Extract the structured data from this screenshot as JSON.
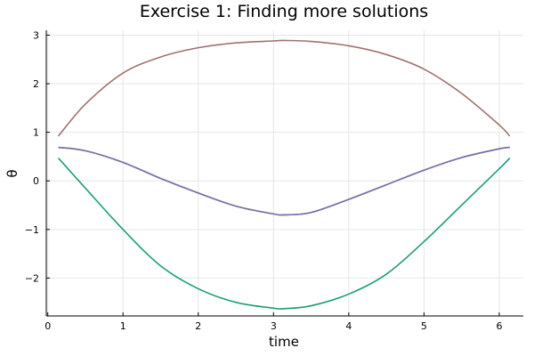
{
  "chart_data": {
    "type": "line",
    "title": "Exercise 1: Finding more solutions",
    "xlabel": "time",
    "ylabel": "θ",
    "xlim": [
      -0.02,
      6.32
    ],
    "ylim": [
      -2.78,
      3.1
    ],
    "xticks": [
      {
        "value": 0,
        "label": "0"
      },
      {
        "value": 1,
        "label": "1"
      },
      {
        "value": 2,
        "label": "2"
      },
      {
        "value": 3,
        "label": "3"
      },
      {
        "value": 4,
        "label": "4"
      },
      {
        "value": 5,
        "label": "5"
      },
      {
        "value": 6,
        "label": "6"
      }
    ],
    "yticks": [
      {
        "value": -2,
        "label": "−2"
      },
      {
        "value": -1,
        "label": "−1"
      },
      {
        "value": 0,
        "label": "0"
      },
      {
        "value": 1,
        "label": "1"
      },
      {
        "value": 2,
        "label": "2"
      },
      {
        "value": 3,
        "label": "3"
      }
    ],
    "grid": true,
    "legend": "none",
    "series": [
      {
        "color": "#1b9e77",
        "x": [
          0.14,
          0.5,
          1.0,
          1.5,
          2.0,
          2.5,
          3.0,
          3.14,
          3.5,
          4.0,
          4.5,
          5.0,
          5.5,
          6.0,
          6.14
        ],
        "y": [
          0.47,
          -0.15,
          -1.0,
          -1.75,
          -2.22,
          -2.5,
          -2.62,
          -2.63,
          -2.57,
          -2.33,
          -1.92,
          -1.25,
          -0.5,
          0.25,
          0.47
        ]
      },
      {
        "color": "#d95f02",
        "x": [
          0.14,
          0.5,
          1.0,
          1.5,
          2.0,
          2.5,
          3.0,
          3.14,
          3.5,
          4.0,
          4.5,
          5.0,
          5.5,
          6.0,
          6.14
        ],
        "y": [
          0.69,
          0.62,
          0.38,
          0.05,
          -0.25,
          -0.52,
          -0.68,
          -0.7,
          -0.65,
          -0.38,
          -0.08,
          0.22,
          0.48,
          0.66,
          0.69
        ]
      },
      {
        "color": "#7570b3",
        "x": [
          0.14,
          0.5,
          1.0,
          1.5,
          2.0,
          2.5,
          3.0,
          3.14,
          3.5,
          4.0,
          4.5,
          5.0,
          5.5,
          6.0,
          6.14
        ],
        "y": [
          0.69,
          0.62,
          0.38,
          0.05,
          -0.25,
          -0.52,
          -0.68,
          -0.7,
          -0.65,
          -0.38,
          -0.08,
          0.22,
          0.48,
          0.66,
          0.69
        ]
      },
      {
        "color": "#a0726e",
        "x": [
          0.14,
          0.5,
          1.0,
          1.5,
          2.0,
          2.5,
          3.0,
          3.14,
          3.5,
          4.0,
          4.5,
          5.0,
          5.5,
          6.0,
          6.14
        ],
        "y": [
          0.92,
          1.58,
          2.22,
          2.55,
          2.74,
          2.84,
          2.88,
          2.89,
          2.87,
          2.78,
          2.6,
          2.3,
          1.8,
          1.15,
          0.92
        ]
      }
    ]
  }
}
